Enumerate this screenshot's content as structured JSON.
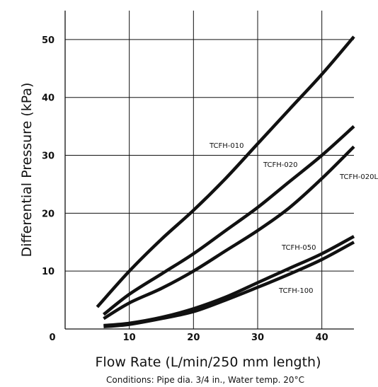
{
  "chart_data": {
    "type": "line",
    "xlabel": "Flow Rate (L/min/250 mm length)",
    "ylabel": "Differential Pressure (kPa)",
    "note": "Conditions: Pipe dia. 3/4 in., Water temp. 20°C",
    "xlim": [
      0,
      45
    ],
    "ylim": [
      0,
      55
    ],
    "xticks": [
      0,
      10,
      20,
      30,
      40
    ],
    "yticks": [
      10,
      20,
      30,
      40,
      50
    ],
    "xtick_labels": [
      "0",
      "10",
      "20",
      "30",
      "40"
    ],
    "ytick_labels": [
      "10",
      "20",
      "30",
      "40",
      "50"
    ],
    "grid": true,
    "line_color": "#111111",
    "series": [
      {
        "name": "TCFH-010",
        "x": [
          5,
          10,
          15,
          20,
          25,
          30,
          35,
          40,
          45
        ],
        "y": [
          3.8,
          10,
          15.5,
          20.5,
          26,
          32,
          38,
          44,
          50.5
        ]
      },
      {
        "name": "TCFH-020",
        "x": [
          6,
          10,
          15,
          20,
          25,
          30,
          35,
          40,
          45
        ],
        "y": [
          2.5,
          6,
          9.5,
          13,
          17,
          21,
          25.5,
          30,
          35
        ]
      },
      {
        "name": "TCFH-020L",
        "x": [
          6,
          10,
          15,
          20,
          25,
          30,
          35,
          40,
          45
        ],
        "y": [
          1.8,
          4.5,
          7,
          10,
          13.5,
          17,
          21,
          26,
          31.5
        ]
      },
      {
        "name": "TCFH-050",
        "x": [
          6,
          10,
          15,
          20,
          25,
          30,
          35,
          40,
          45
        ],
        "y": [
          0.6,
          1,
          2,
          3.5,
          5.5,
          8,
          10.5,
          13,
          16
        ]
      },
      {
        "name": "TCFH-100",
        "x": [
          6,
          10,
          15,
          20,
          25,
          30,
          35,
          40,
          45
        ],
        "y": [
          0.4,
          0.8,
          1.8,
          3,
          5,
          7.2,
          9.5,
          12,
          15
        ]
      }
    ]
  }
}
